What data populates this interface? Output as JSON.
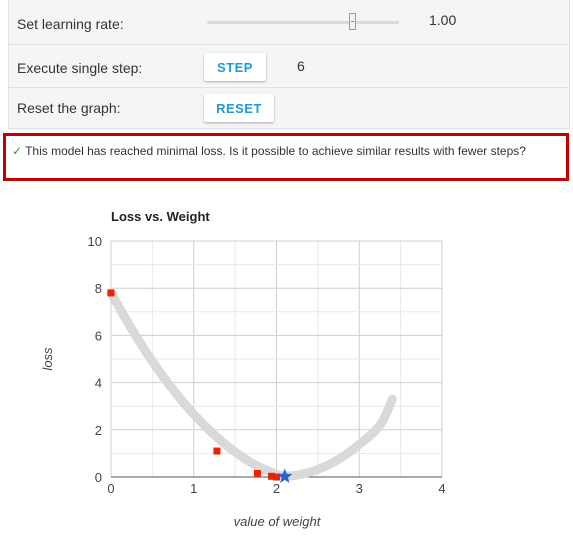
{
  "controls": {
    "learning_rate_label": "Set learning rate:",
    "learning_rate_value": "1.00",
    "learning_rate_slider_fraction": 0.76,
    "single_step_label": "Execute single step:",
    "step_button_label": "STEP",
    "step_count": "6",
    "reset_label": "Reset the graph:",
    "reset_button_label": "RESET"
  },
  "message": {
    "check_glyph": "✓",
    "text": "This model has reached minimal loss. Is it possible to achieve similar results with fewer steps?",
    "border_color": "#c40000"
  },
  "colors": {
    "accent": "#1e9bd7",
    "curve": "#d9d9d9",
    "step_marker": "#ee2200",
    "minimum_marker": "#2a66c9",
    "check": "#2e9b2e"
  },
  "chart_data": {
    "type": "line",
    "title": "Loss vs. Weight",
    "xlabel": "value of weight",
    "ylabel": "loss",
    "xlim": [
      0,
      4
    ],
    "ylim": [
      0,
      10
    ],
    "x_ticks": [
      "0",
      "1",
      "2",
      "3",
      "4"
    ],
    "y_ticks": [
      "0",
      "2",
      "4",
      "6",
      "8",
      "10"
    ],
    "grid": true,
    "loss_curve": {
      "x": [
        0,
        0.25,
        0.5,
        0.75,
        1.0,
        1.25,
        1.5,
        1.75,
        2.0,
        2.1,
        2.25,
        2.5,
        2.75,
        3.0,
        3.25,
        3.4
      ],
      "y": [
        7.8,
        6.27,
        4.9,
        3.7,
        2.66,
        1.78,
        1.06,
        0.5,
        0.12,
        0.05,
        0.08,
        0.32,
        0.75,
        1.38,
        2.19,
        3.3
      ]
    },
    "steps": {
      "x": [
        0.0,
        1.28,
        1.77,
        1.94,
        2.0
      ],
      "y": [
        7.8,
        1.1,
        0.15,
        0.03,
        0.0
      ]
    },
    "minimum": {
      "x": 2.1,
      "y": 0.02
    }
  }
}
